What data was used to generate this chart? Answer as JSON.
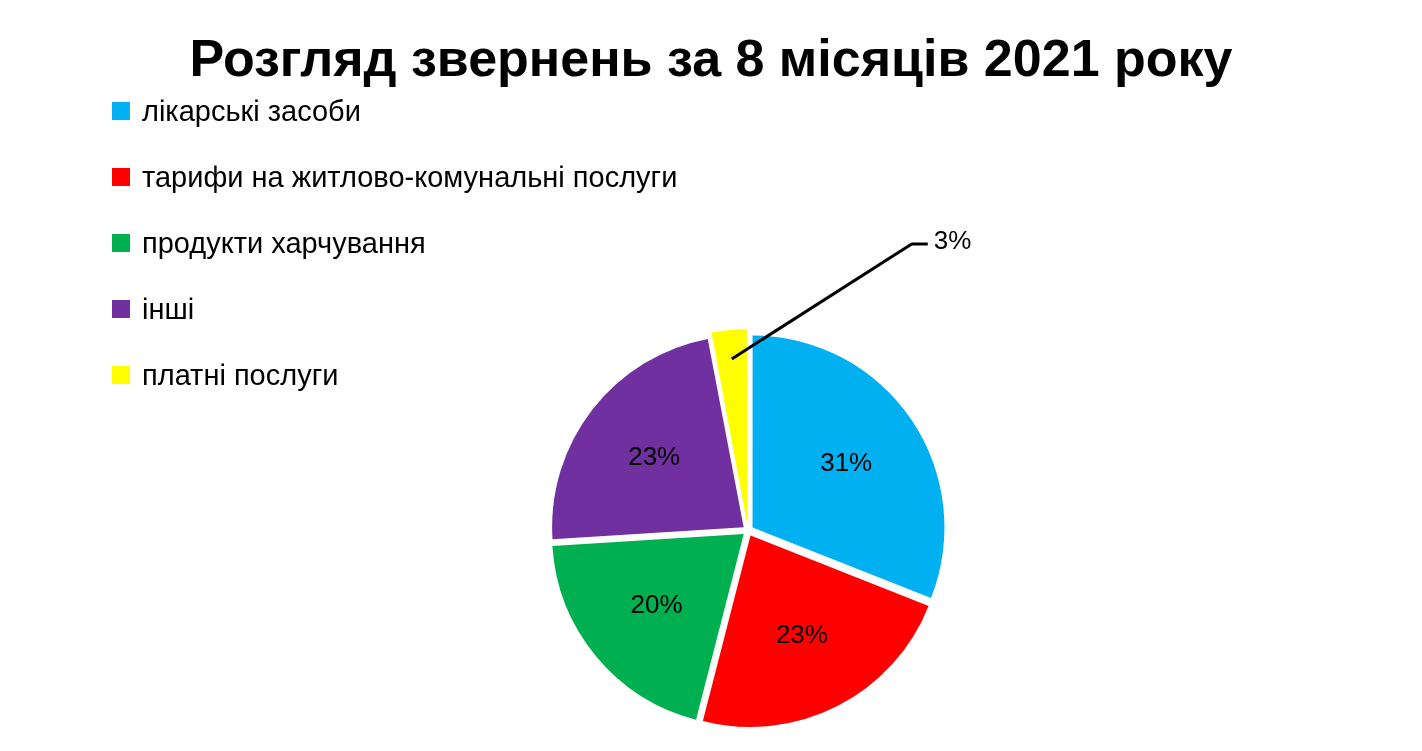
{
  "chart_data": {
    "type": "pie",
    "title": "Розгляд звернень за 8 місяців 2021 року",
    "categories": [
      "лікарські засоби",
      "тарифи на житлово-комунальні послуги",
      "продукти харчування",
      "інші",
      "платні послуги"
    ],
    "values": [
      31,
      23,
      20,
      23,
      3
    ],
    "colors": [
      "#00b0f0",
      "#ff0000",
      "#00b050",
      "#7030a0",
      "#ffff00"
    ],
    "value_labels": [
      "31%",
      "23%",
      "20%",
      "23%",
      "3%"
    ],
    "legend": "top left"
  }
}
